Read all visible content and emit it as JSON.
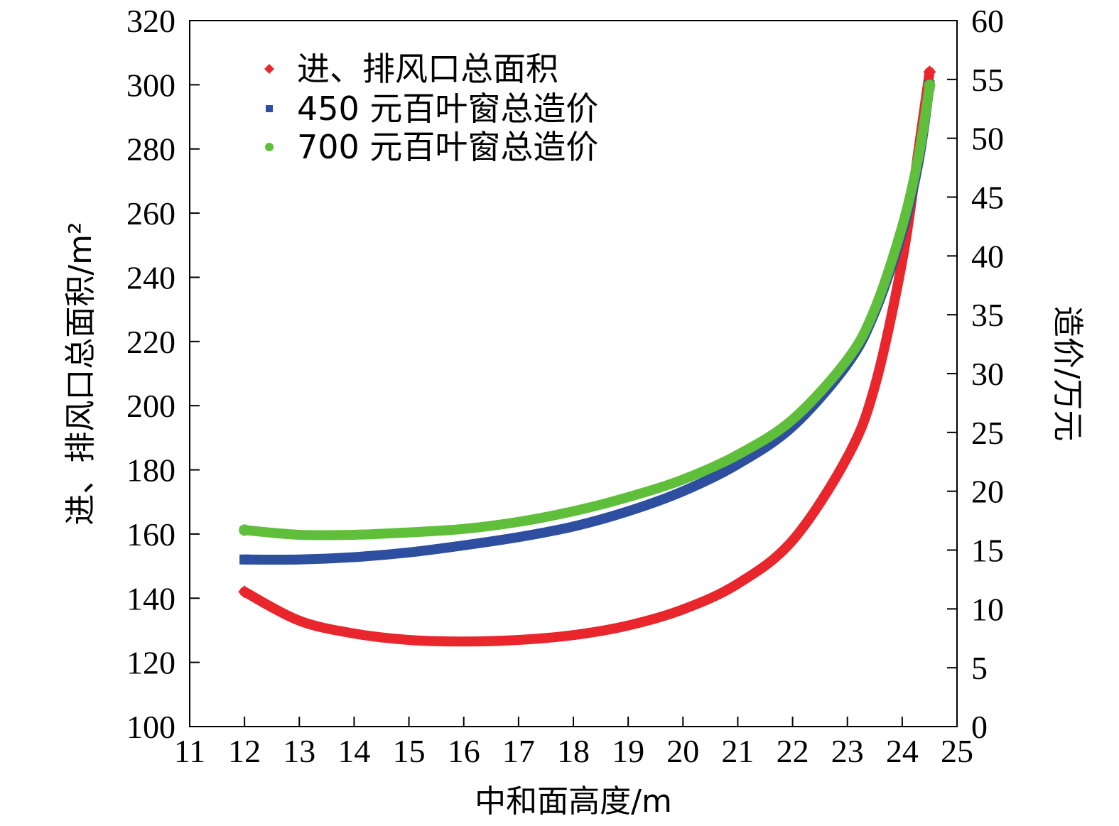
{
  "chart_data": {
    "type": "line",
    "xlabel": "中和面高度/m",
    "ylabel_left": "进、排风口总面积/m²",
    "ylabel_right": "造价/万元",
    "xlim": [
      11,
      25
    ],
    "ylim_left": [
      100,
      320
    ],
    "ylim_right": [
      0,
      60
    ],
    "x_ticks": [
      "11",
      "12",
      "13",
      "14",
      "15",
      "16",
      "17",
      "18",
      "19",
      "20",
      "21",
      "22",
      "23",
      "24",
      "25"
    ],
    "y_left_ticks": [
      "100",
      "120",
      "140",
      "160",
      "180",
      "200",
      "220",
      "240",
      "260",
      "280",
      "300",
      "320"
    ],
    "y_right_ticks": [
      "0",
      "5",
      "10",
      "15",
      "20",
      "25",
      "30",
      "35",
      "40",
      "45",
      "50",
      "55",
      "60"
    ],
    "grid": false,
    "legend_position": "top-left",
    "series": [
      {
        "name": "进、排风口总面积",
        "axis": "left",
        "color": "#e8262c",
        "marker": "diamond",
        "x": [
          12,
          13,
          14,
          15,
          16,
          17,
          18,
          19,
          20,
          21,
          22,
          23,
          23.5,
          24,
          24.3,
          24.5
        ],
        "y": [
          142,
          133,
          129,
          127,
          126.5,
          127,
          128.5,
          131.5,
          136.5,
          144.5,
          158,
          184,
          206,
          245,
          280,
          304
        ]
      },
      {
        "name": "450 元百叶窗总造价",
        "axis": "right",
        "color": "#2e4ea0",
        "marker": "square",
        "x": [
          12,
          13,
          14,
          15,
          16,
          17,
          18,
          19,
          20,
          21,
          22,
          23,
          23.5,
          24,
          24.3,
          24.5
        ],
        "y": [
          14.2,
          14.2,
          14.4,
          14.8,
          15.4,
          16.1,
          17.0,
          18.3,
          20.0,
          22.3,
          25.5,
          30.8,
          35.2,
          42.0,
          48.0,
          54.5
        ]
      },
      {
        "name": "700 元百叶窗总造价",
        "axis": "right",
        "color": "#5fbf3b",
        "marker": "circle",
        "x": [
          12,
          13,
          14,
          15,
          16,
          17,
          18,
          19,
          20,
          21,
          22,
          23,
          23.5,
          24,
          24.3,
          24.5
        ],
        "y": [
          16.7,
          16.3,
          16.3,
          16.5,
          16.8,
          17.4,
          18.3,
          19.5,
          21.0,
          23.1,
          26.1,
          31.2,
          35.5,
          42.5,
          48.5,
          54.5
        ]
      }
    ]
  }
}
